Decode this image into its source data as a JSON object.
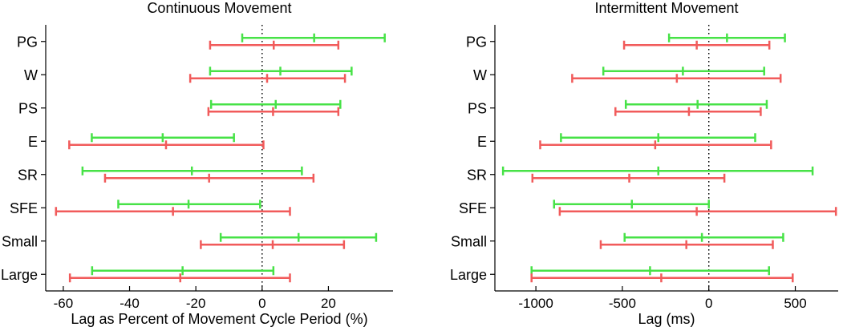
{
  "figure": {
    "background": "#ffffff",
    "axis_color": "#000000",
    "text_color": "#000000",
    "zero_line_color": "#000000",
    "series_colors": {
      "green": "#47E247",
      "red": "#F15B5B"
    }
  },
  "chart_data": [
    {
      "type": "errorbar-horizontal",
      "title": "Continuous Movement",
      "xlabel": "Lag as Percent of Movement Cycle Period (%)",
      "categories": [
        "PG",
        "W",
        "PS",
        "E",
        "SR",
        "SFE",
        "Small",
        "Large"
      ],
      "xlim": [
        -65.3,
        39.5
      ],
      "xticks": [
        -60,
        -40,
        -20,
        0,
        20
      ],
      "xtick_labels": [
        "-60",
        "-40",
        "-20",
        "0",
        "20"
      ],
      "zero_reference_line": 0,
      "grid": false,
      "legend": null,
      "series": [
        {
          "name": "green",
          "color_key": "green",
          "values_low_mid_high": [
            [
              -6,
              15.7,
              37
            ],
            [
              -15.7,
              5.5,
              27
            ],
            [
              -15.4,
              4.1,
              23.6
            ],
            [
              -51.4,
              -30,
              -8.5
            ],
            [
              -54.2,
              -21.2,
              12
            ],
            [
              -43.4,
              -22.2,
              -0.6
            ],
            [
              -12.5,
              11,
              34.4
            ],
            [
              -51.3,
              -24,
              3.4
            ]
          ]
        },
        {
          "name": "red",
          "color_key": "red",
          "values_low_mid_high": [
            [
              -15.7,
              3.5,
              23
            ],
            [
              -21.7,
              1.5,
              25
            ],
            [
              -16.2,
              3.3,
              23
            ],
            [
              -58.2,
              -29,
              0.4
            ],
            [
              -47.4,
              -16,
              15.5
            ],
            [
              -62.2,
              -26.9,
              8.4
            ],
            [
              -18.5,
              3.2,
              24.7
            ],
            [
              -58,
              -24.7,
              8.4
            ]
          ]
        }
      ]
    },
    {
      "type": "errorbar-horizontal",
      "title": "Intermittent Movement",
      "xlabel": "Lag (ms)",
      "categories": [
        "PG",
        "W",
        "PS",
        "E",
        "SR",
        "SFE",
        "Small",
        "Large"
      ],
      "xlim": [
        -1237,
        748
      ],
      "xticks": [
        -1000,
        -500,
        0,
        500
      ],
      "xtick_labels": [
        "-1000",
        "-500",
        "0",
        "500"
      ],
      "zero_reference_line": 0,
      "grid": false,
      "legend": null,
      "series": [
        {
          "name": "green",
          "color_key": "green",
          "values_low_mid_high": [
            [
              -230,
              105,
              440
            ],
            [
              -610,
              -150,
              320
            ],
            [
              -480,
              -65,
              335
            ],
            [
              -855,
              -292,
              268
            ],
            [
              -1190,
              -292,
              600
            ],
            [
              -895,
              -445,
              0
            ],
            [
              -487,
              -40,
              430
            ],
            [
              -1025,
              -340,
              348
            ]
          ]
        },
        {
          "name": "red",
          "color_key": "red",
          "values_low_mid_high": [
            [
              -490,
              -70,
              350
            ],
            [
              -790,
              -185,
              415
            ],
            [
              -540,
              -115,
              300
            ],
            [
              -975,
              -310,
              360
            ],
            [
              -1020,
              -460,
              90
            ],
            [
              -862,
              -70,
              735
            ],
            [
              -625,
              -130,
              370
            ],
            [
              -1025,
              -275,
              485
            ]
          ]
        }
      ]
    }
  ]
}
